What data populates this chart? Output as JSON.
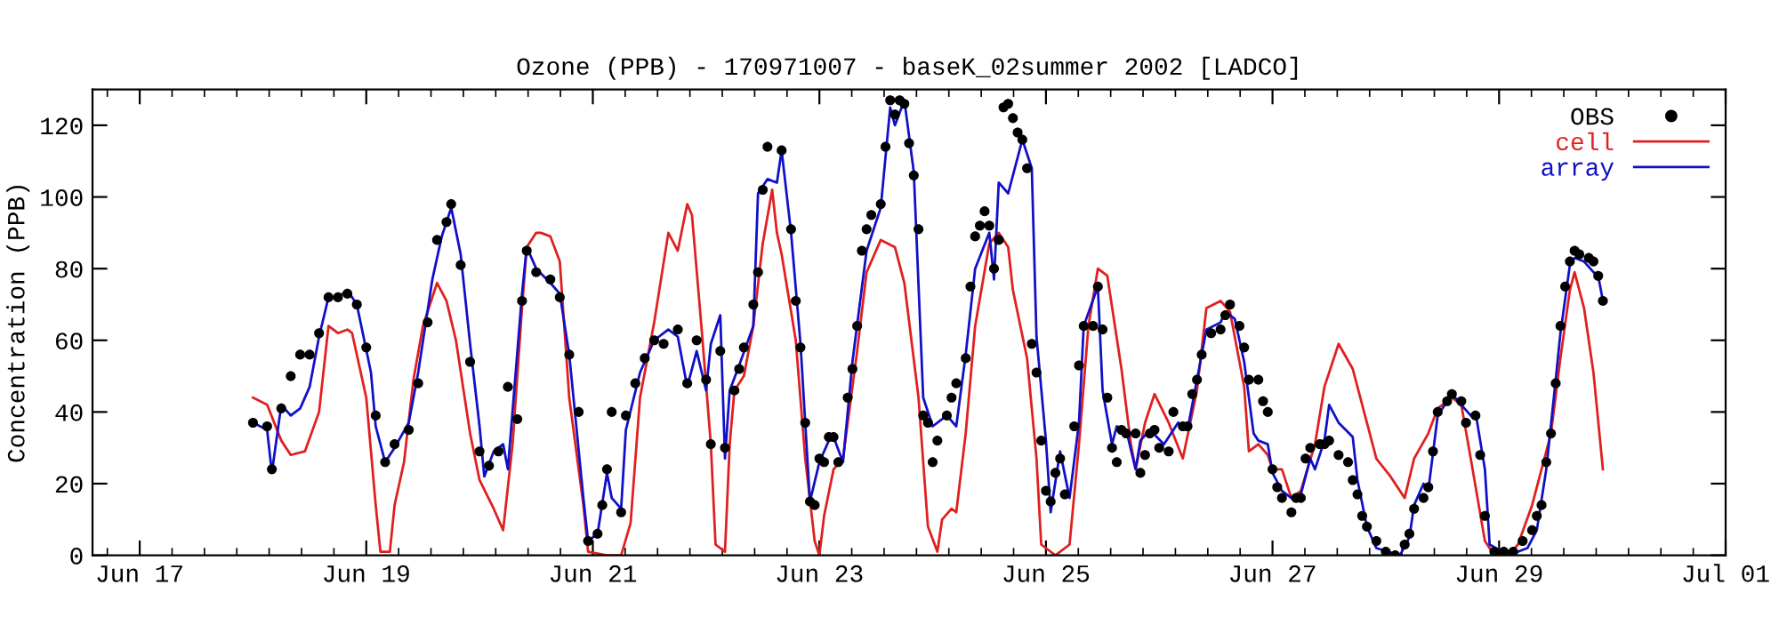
{
  "chart_data": {
    "type": "line",
    "title": "Ozone (PPB) - 170971007 - baseK_02summer 2002 [LADCO]",
    "ylabel": "Concentration (PPB)",
    "xlim": [
      "2002-06-16T14:00",
      "2002-07-01T00:00"
    ],
    "ylim": [
      0,
      130
    ],
    "xticks": [
      {
        "value": "2002-06-17",
        "label": "Jun 17"
      },
      {
        "value": "2002-06-19",
        "label": "Jun 19"
      },
      {
        "value": "2002-06-21",
        "label": "Jun 21"
      },
      {
        "value": "2002-06-23",
        "label": "Jun 23"
      },
      {
        "value": "2002-06-25",
        "label": "Jun 25"
      },
      {
        "value": "2002-06-27",
        "label": "Jun 27"
      },
      {
        "value": "2002-06-29",
        "label": "Jun 29"
      },
      {
        "value": "2002-07-01",
        "label": "Jul 01"
      }
    ],
    "yticks": [
      0,
      20,
      40,
      60,
      80,
      100,
      120
    ],
    "legend": "top right",
    "series": [
      {
        "name": "OBS",
        "type": "scatter",
        "marker": "circle",
        "color": "#000000",
        "x": [
          "2002-06-18T00:00",
          "2002-06-18T03:00",
          "2002-06-18T04:00",
          "2002-06-18T06:00",
          "2002-06-18T08:00",
          "2002-06-18T10:00",
          "2002-06-18T12:00",
          "2002-06-18T14:00",
          "2002-06-18T16:00",
          "2002-06-18T18:00",
          "2002-06-18T20:00",
          "2002-06-18T22:00",
          "2002-06-19T00:00",
          "2002-06-19T02:00",
          "2002-06-19T04:00",
          "2002-06-19T06:00",
          "2002-06-19T09:00",
          "2002-06-19T11:00",
          "2002-06-19T13:00",
          "2002-06-19T15:00",
          "2002-06-19T17:00",
          "2002-06-19T18:00",
          "2002-06-19T20:00",
          "2002-06-19T22:00",
          "2002-06-20T00:00",
          "2002-06-20T02:00",
          "2002-06-20T04:00",
          "2002-06-20T06:00",
          "2002-06-20T08:00",
          "2002-06-20T09:00",
          "2002-06-20T10:00",
          "2002-06-20T12:00",
          "2002-06-20T15:00",
          "2002-06-20T17:00",
          "2002-06-20T19:00",
          "2002-06-20T21:00",
          "2002-06-20T23:00",
          "2002-06-21T01:00",
          "2002-06-21T02:00",
          "2002-06-21T03:00",
          "2002-06-21T04:00",
          "2002-06-21T06:00",
          "2002-06-21T07:00",
          "2002-06-21T09:00",
          "2002-06-21T11:00",
          "2002-06-21T13:00",
          "2002-06-21T15:00",
          "2002-06-21T18:00",
          "2002-06-21T20:00",
          "2002-06-21T22:00",
          "2002-06-22T00:00",
          "2002-06-22T01:00",
          "2002-06-22T03:00",
          "2002-06-22T04:00",
          "2002-06-22T06:00",
          "2002-06-22T07:00",
          "2002-06-22T08:00",
          "2002-06-22T10:00",
          "2002-06-22T11:00",
          "2002-06-22T12:00",
          "2002-06-22T13:00",
          "2002-06-22T16:00",
          "2002-06-22T18:00",
          "2002-06-22T19:00",
          "2002-06-22T20:00",
          "2002-06-22T21:00",
          "2002-06-22T22:00",
          "2002-06-22T23:00",
          "2002-06-23T00:00",
          "2002-06-23T01:00",
          "2002-06-23T02:00",
          "2002-06-23T03:00",
          "2002-06-23T04:00",
          "2002-06-23T06:00",
          "2002-06-23T07:00",
          "2002-06-23T08:00",
          "2002-06-23T09:00",
          "2002-06-23T10:00",
          "2002-06-23T11:00",
          "2002-06-23T13:00",
          "2002-06-23T14:00",
          "2002-06-23T15:00",
          "2002-06-23T16:00",
          "2002-06-23T17:00",
          "2002-06-23T18:00",
          "2002-06-23T19:00",
          "2002-06-23T20:00",
          "2002-06-23T21:00",
          "2002-06-23T22:00",
          "2002-06-23T23:00",
          "2002-06-24T00:00",
          "2002-06-24T01:00",
          "2002-06-24T03:00",
          "2002-06-24T04:00",
          "2002-06-24T05:00",
          "2002-06-24T07:00",
          "2002-06-24T08:00",
          "2002-06-24T09:00",
          "2002-06-24T10:00",
          "2002-06-24T11:00",
          "2002-06-24T12:00",
          "2002-06-24T13:00",
          "2002-06-24T14:00",
          "2002-06-24T15:00",
          "2002-06-24T16:00",
          "2002-06-24T17:00",
          "2002-06-24T18:00",
          "2002-06-24T19:00",
          "2002-06-24T20:00",
          "2002-06-24T21:00",
          "2002-06-24T22:00",
          "2002-06-24T23:00",
          "2002-06-25T00:00",
          "2002-06-25T01:00",
          "2002-06-25T02:00",
          "2002-06-25T03:00",
          "2002-06-25T04:00",
          "2002-06-25T06:00",
          "2002-06-25T07:00",
          "2002-06-25T08:00",
          "2002-06-25T10:00",
          "2002-06-25T11:00",
          "2002-06-25T12:00",
          "2002-06-25T13:00",
          "2002-06-25T14:00",
          "2002-06-25T15:00",
          "2002-06-25T16:00",
          "2002-06-25T17:00",
          "2002-06-25T19:00",
          "2002-06-25T20:00",
          "2002-06-25T21:00",
          "2002-06-25T22:00",
          "2002-06-25T23:00",
          "2002-06-26T00:00",
          "2002-06-26T02:00",
          "2002-06-26T03:00",
          "2002-06-26T05:00",
          "2002-06-26T06:00",
          "2002-06-26T07:00",
          "2002-06-26T08:00",
          "2002-06-26T09:00",
          "2002-06-26T11:00",
          "2002-06-26T13:00",
          "2002-06-26T14:00",
          "2002-06-26T15:00",
          "2002-06-26T17:00",
          "2002-06-26T18:00",
          "2002-06-26T19:00",
          "2002-06-26T21:00",
          "2002-06-26T22:00",
          "2002-06-26T23:00",
          "2002-06-27T00:00",
          "2002-06-27T01:00",
          "2002-06-27T02:00",
          "2002-06-27T04:00",
          "2002-06-27T05:00",
          "2002-06-27T06:00",
          "2002-06-27T07:00",
          "2002-06-27T08:00",
          "2002-06-27T10:00",
          "2002-06-27T11:00",
          "2002-06-27T12:00",
          "2002-06-27T14:00",
          "2002-06-27T16:00",
          "2002-06-27T17:00",
          "2002-06-27T18:00",
          "2002-06-27T19:00",
          "2002-06-27T20:00",
          "2002-06-27T22:00",
          "2002-06-28T00:00",
          "2002-06-28T02:00",
          "2002-06-28T04:00",
          "2002-06-28T05:00",
          "2002-06-28T06:00",
          "2002-06-28T08:00",
          "2002-06-28T09:00",
          "2002-06-28T10:00",
          "2002-06-28T11:00",
          "2002-06-28T13:00",
          "2002-06-28T14:00",
          "2002-06-28T16:00",
          "2002-06-28T17:00",
          "2002-06-28T19:00",
          "2002-06-28T20:00",
          "2002-06-28T21:00",
          "2002-06-28T23:00",
          "2002-06-29T01:00",
          "2002-06-29T03:00",
          "2002-06-29T05:00",
          "2002-06-29T07:00",
          "2002-06-29T08:00",
          "2002-06-29T09:00",
          "2002-06-29T10:00",
          "2002-06-29T11:00",
          "2002-06-29T12:00",
          "2002-06-29T13:00",
          "2002-06-29T14:00",
          "2002-06-29T15:00",
          "2002-06-29T16:00",
          "2002-06-29T17:00",
          "2002-06-29T19:00",
          "2002-06-29T20:00",
          "2002-06-29T21:00",
          "2002-06-29T22:00"
        ],
        "values": [
          37,
          36,
          24,
          41,
          50,
          56,
          56,
          62,
          72,
          72,
          73,
          70,
          58,
          39,
          26,
          31,
          35,
          48,
          65,
          88,
          93,
          98,
          81,
          54,
          29,
          25,
          29,
          47,
          38,
          71,
          85,
          79,
          77,
          72,
          56,
          40,
          4,
          6,
          14,
          24,
          40,
          12,
          39,
          48,
          55,
          60,
          59,
          63,
          48,
          60,
          49,
          31,
          57,
          30,
          46,
          52,
          58,
          70,
          79,
          102,
          114,
          113,
          91,
          71,
          58,
          37,
          15,
          14,
          27,
          26,
          33,
          33,
          26,
          44,
          52,
          64,
          85,
          91,
          95,
          98,
          114,
          127,
          123,
          127,
          126,
          115,
          106,
          91,
          39,
          37,
          26,
          32,
          39,
          44,
          48,
          55,
          75,
          89,
          92,
          96,
          92,
          80,
          88,
          125,
          126,
          122,
          118,
          116,
          108,
          59,
          51,
          32,
          18,
          15,
          23,
          27,
          17,
          36,
          53,
          64,
          64,
          75,
          63,
          44,
          30,
          26,
          35,
          34,
          34,
          23,
          28,
          34,
          35,
          30,
          29,
          40,
          36,
          36,
          45,
          49,
          56,
          62,
          63,
          67,
          70,
          64,
          58,
          49,
          49,
          43,
          40,
          24,
          19,
          16,
          12,
          16,
          16,
          27,
          30,
          31,
          31,
          32,
          28,
          26,
          21,
          17,
          11,
          8,
          4,
          1,
          0,
          3,
          6,
          13,
          16,
          19,
          29,
          40,
          43,
          45,
          43,
          37,
          39,
          28,
          11,
          1,
          1,
          1,
          4,
          7,
          11,
          14,
          26,
          34,
          48,
          64,
          75,
          82,
          85,
          84,
          83,
          82,
          78,
          71
        ]
      },
      {
        "name": "cell",
        "marker": "none",
        "line_style": "solid",
        "color": "#e02020",
        "x": [
          "2002-06-18T00:00",
          "2002-06-18T03:00",
          "2002-06-18T06:00",
          "2002-06-18T08:00",
          "2002-06-18T11:00",
          "2002-06-18T14:00",
          "2002-06-18T16:00",
          "2002-06-18T18:00",
          "2002-06-18T20:00",
          "2002-06-18T21:00",
          "2002-06-19T00:00",
          "2002-06-19T02:00",
          "2002-06-19T03:00",
          "2002-06-19T05:00",
          "2002-06-19T06:00",
          "2002-06-19T08:00",
          "2002-06-19T10:00",
          "2002-06-19T12:00",
          "2002-06-19T15:00",
          "2002-06-19T17:00",
          "2002-06-19T19:00",
          "2002-06-19T22:00",
          "2002-06-20T00:00",
          "2002-06-20T03:00",
          "2002-06-20T05:00",
          "2002-06-20T07:00",
          "2002-06-20T09:00",
          "2002-06-20T10:00",
          "2002-06-20T12:00",
          "2002-06-20T13:00",
          "2002-06-20T15:00",
          "2002-06-20T17:00",
          "2002-06-20T19:00",
          "2002-06-20T22:00",
          "2002-06-20T23:00",
          "2002-06-21T03:00",
          "2002-06-21T06:00",
          "2002-06-21T08:00",
          "2002-06-21T10:00",
          "2002-06-21T13:00",
          "2002-06-21T16:00",
          "2002-06-21T18:00",
          "2002-06-21T20:00",
          "2002-06-21T21:00",
          "2002-06-21T23:00",
          "2002-06-22T01:00",
          "2002-06-22T02:00",
          "2002-06-22T04:00",
          "2002-06-22T05:00",
          "2002-06-22T06:00",
          "2002-06-22T08:00",
          "2002-06-22T10:00",
          "2002-06-22T12:00",
          "2002-06-22T14:00",
          "2002-06-22T15:00",
          "2002-06-22T16:00",
          "2002-06-22T19:00",
          "2002-06-22T21:00",
          "2002-06-22T23:00",
          "2002-06-23T00:00",
          "2002-06-23T01:00",
          "2002-06-23T03:00",
          "2002-06-23T05:00",
          "2002-06-23T08:00",
          "2002-06-23T10:00",
          "2002-06-23T13:00",
          "2002-06-23T16:00",
          "2002-06-23T18:00",
          "2002-06-23T21:00",
          "2002-06-23T23:00",
          "2002-06-24T01:00",
          "2002-06-24T02:00",
          "2002-06-24T04:00",
          "2002-06-24T05:00",
          "2002-06-24T07:00",
          "2002-06-24T09:00",
          "2002-06-24T12:00",
          "2002-06-24T14:00",
          "2002-06-24T16:00",
          "2002-06-24T17:00",
          "2002-06-24T20:00",
          "2002-06-24T22:00",
          "2002-06-24T23:00",
          "2002-06-25T02:00",
          "2002-06-25T05:00",
          "2002-06-25T07:00",
          "2002-06-25T09:00",
          "2002-06-25T11:00",
          "2002-06-25T13:00",
          "2002-06-25T16:00",
          "2002-06-25T18:00",
          "2002-06-25T19:00",
          "2002-06-25T21:00",
          "2002-06-25T23:00",
          "2002-06-26T02:00",
          "2002-06-26T05:00",
          "2002-06-26T08:00",
          "2002-06-26T10:00",
          "2002-06-26T13:00",
          "2002-06-26T15:00",
          "2002-06-26T16:00",
          "2002-06-26T18:00",
          "2002-06-26T19:00",
          "2002-06-26T21:00",
          "2002-06-26T23:00",
          "2002-06-27T00:00",
          "2002-06-27T02:00",
          "2002-06-27T04:00",
          "2002-06-27T06:00",
          "2002-06-27T09:00",
          "2002-06-27T11:00",
          "2002-06-27T14:00",
          "2002-06-27T17:00",
          "2002-06-27T20:00",
          "2002-06-27T22:00",
          "2002-06-28T01:00",
          "2002-06-28T04:00",
          "2002-06-28T06:00",
          "2002-06-28T09:00",
          "2002-06-28T11:00",
          "2002-06-28T14:00",
          "2002-06-28T16:00",
          "2002-06-28T18:00",
          "2002-06-28T21:00",
          "2002-06-28T23:00",
          "2002-06-29T02:00",
          "2002-06-29T04:00",
          "2002-06-29T07:00",
          "2002-06-29T11:00",
          "2002-06-29T13:00",
          "2002-06-29T15:00",
          "2002-06-29T16:00",
          "2002-06-29T18:00",
          "2002-06-29T20:00",
          "2002-06-29T22:00"
        ],
        "values": [
          44,
          42,
          32,
          28,
          29,
          40,
          64,
          62,
          63,
          62,
          44,
          14,
          1,
          1,
          14,
          26,
          49,
          64,
          76,
          71,
          60,
          34,
          21,
          13,
          7,
          31,
          69,
          86,
          90,
          90,
          89,
          82,
          44,
          14,
          1,
          0,
          0,
          9,
          44,
          65,
          90,
          85,
          98,
          95,
          64,
          31,
          3,
          1,
          31,
          46,
          50,
          64,
          87,
          102,
          90,
          84,
          60,
          27,
          4,
          0,
          11,
          24,
          27,
          57,
          79,
          88,
          86,
          76,
          44,
          8,
          1,
          10,
          13,
          12,
          34,
          64,
          87,
          90,
          86,
          74,
          55,
          27,
          3,
          0,
          3,
          31,
          64,
          80,
          78,
          52,
          31,
          24,
          37,
          45,
          37,
          27,
          46,
          69,
          71,
          68,
          61,
          47,
          29,
          31,
          28,
          24,
          24,
          16,
          18,
          31,
          47,
          59,
          52,
          37,
          27,
          22,
          16,
          27,
          34,
          41,
          44,
          42,
          27,
          4,
          0,
          0,
          3,
          14,
          34,
          55,
          74,
          79,
          69,
          51,
          24
        ]
      },
      {
        "name": "array",
        "marker": "none",
        "line_style": "solid",
        "color": "#1010c8",
        "x": [
          "2002-06-18T00:00",
          "2002-06-18T03:00",
          "2002-06-18T04:00",
          "2002-06-18T06:00",
          "2002-06-18T08:00",
          "2002-06-18T10:00",
          "2002-06-18T12:00",
          "2002-06-18T14:00",
          "2002-06-18T16:00",
          "2002-06-18T18:00",
          "2002-06-18T20:00",
          "2002-06-18T22:00",
          "2002-06-19T01:00",
          "2002-06-19T02:00",
          "2002-06-19T04:00",
          "2002-06-19T06:00",
          "2002-06-19T09:00",
          "2002-06-19T11:00",
          "2002-06-19T14:00",
          "2002-06-19T16:00",
          "2002-06-19T17:00",
          "2002-06-19T18:00",
          "2002-06-19T20:00",
          "2002-06-19T22:00",
          "2002-06-20T00:00",
          "2002-06-20T01:00",
          "2002-06-20T03:00",
          "2002-06-20T05:00",
          "2002-06-20T06:00",
          "2002-06-20T09:00",
          "2002-06-20T10:00",
          "2002-06-20T12:00",
          "2002-06-20T15:00",
          "2002-06-20T17:00",
          "2002-06-20T19:00",
          "2002-06-20T22:00",
          "2002-06-20T23:00",
          "2002-06-21T01:00",
          "2002-06-21T03:00",
          "2002-06-21T04:00",
          "2002-06-21T06:00",
          "2002-06-21T07:00",
          "2002-06-21T10:00",
          "2002-06-21T13:00",
          "2002-06-21T16:00",
          "2002-06-21T18:00",
          "2002-06-21T20:00",
          "2002-06-21T22:00",
          "2002-06-22T00:00",
          "2002-06-22T01:00",
          "2002-06-22T03:00",
          "2002-06-22T04:00",
          "2002-06-22T05:00",
          "2002-06-22T07:00",
          "2002-06-22T10:00",
          "2002-06-22T11:00",
          "2002-06-22T13:00",
          "2002-06-22T15:00",
          "2002-06-22T16:00",
          "2002-06-22T18:00",
          "2002-06-22T20:00",
          "2002-06-22T22:00",
          "2002-06-23T00:00",
          "2002-06-23T02:00",
          "2002-06-23T03:00",
          "2002-06-23T05:00",
          "2002-06-23T07:00",
          "2002-06-23T10:00",
          "2002-06-23T13:00",
          "2002-06-23T15:00",
          "2002-06-23T16:00",
          "2002-06-23T18:00",
          "2002-06-23T20:00",
          "2002-06-23T22:00",
          "2002-06-24T00:00",
          "2002-06-24T03:00",
          "2002-06-24T05:00",
          "2002-06-24T07:00",
          "2002-06-24T09:00",
          "2002-06-24T12:00",
          "2002-06-24T13:00",
          "2002-06-24T14:00",
          "2002-06-24T16:00",
          "2002-06-24T19:00",
          "2002-06-24T21:00",
          "2002-06-24T22:00",
          "2002-06-25T00:00",
          "2002-06-25T01:00",
          "2002-06-25T03:00",
          "2002-06-25T05:00",
          "2002-06-25T07:00",
          "2002-06-25T08:00",
          "2002-06-25T11:00",
          "2002-06-25T12:00",
          "2002-06-25T14:00",
          "2002-06-25T15:00",
          "2002-06-25T17:00",
          "2002-06-25T19:00",
          "2002-06-25T20:00",
          "2002-06-25T22:00",
          "2002-06-26T01:00",
          "2002-06-26T04:00",
          "2002-06-26T06:00",
          "2002-06-26T08:00",
          "2002-06-26T10:00",
          "2002-06-26T13:00",
          "2002-06-26T14:00",
          "2002-06-26T16:00",
          "2002-06-26T18:00",
          "2002-06-26T20:00",
          "2002-06-26T21:00",
          "2002-06-26T23:00",
          "2002-06-27T00:00",
          "2002-06-27T02:00",
          "2002-06-27T04:00",
          "2002-06-27T06:00",
          "2002-06-27T08:00",
          "2002-06-27T09:00",
          "2002-06-27T11:00",
          "2002-06-27T12:00",
          "2002-06-27T14:00",
          "2002-06-27T17:00",
          "2002-06-27T18:00",
          "2002-06-27T20:00",
          "2002-06-27T22:00",
          "2002-06-28T03:00",
          "2002-06-28T05:00",
          "2002-06-28T06:00",
          "2002-06-28T08:00",
          "2002-06-28T09:00",
          "2002-06-28T11:00",
          "2002-06-28T14:00",
          "2002-06-28T16:00",
          "2002-06-28T18:00",
          "2002-06-28T19:00",
          "2002-06-28T21:00",
          "2002-06-28T22:00",
          "2002-06-29T02:00",
          "2002-06-29T06:00",
          "2002-06-29T08:00",
          "2002-06-29T10:00",
          "2002-06-29T12:00",
          "2002-06-29T13:00",
          "2002-06-29T15:00",
          "2002-06-29T16:00",
          "2002-06-29T18:00",
          "2002-06-29T20:00",
          "2002-06-29T21:00",
          "2002-06-29T22:00"
        ],
        "values": [
          37,
          35,
          23,
          42,
          39,
          41,
          47,
          61,
          72,
          72,
          74,
          70,
          51,
          36,
          26,
          30,
          37,
          51,
          77,
          89,
          93,
          97,
          84,
          59,
          36,
          22,
          29,
          31,
          24,
          73,
          86,
          80,
          76,
          73,
          56,
          16,
          4,
          6,
          23,
          16,
          13,
          35,
          51,
          60,
          63,
          61,
          47,
          57,
          46,
          59,
          67,
          27,
          46,
          53,
          64,
          101,
          105,
          104,
          113,
          90,
          59,
          15,
          26,
          32,
          33,
          26,
          54,
          85,
          97,
          125,
          120,
          127,
          107,
          44,
          36,
          39,
          36,
          56,
          80,
          90,
          77,
          104,
          101,
          116,
          108,
          61,
          32,
          12,
          29,
          16,
          37,
          64,
          75,
          46,
          31,
          36,
          35,
          24,
          32,
          35,
          31,
          37,
          35,
          49,
          63,
          65,
          68,
          66,
          54,
          34,
          32,
          31,
          23,
          18,
          16,
          17,
          27,
          24,
          32,
          42,
          37,
          33,
          21,
          8,
          2,
          0,
          5,
          14,
          20,
          18,
          39,
          45,
          42,
          39,
          40,
          24,
          3,
          0,
          2,
          7,
          24,
          49,
          62,
          81,
          83,
          82,
          79,
          78,
          71
        ]
      }
    ]
  }
}
